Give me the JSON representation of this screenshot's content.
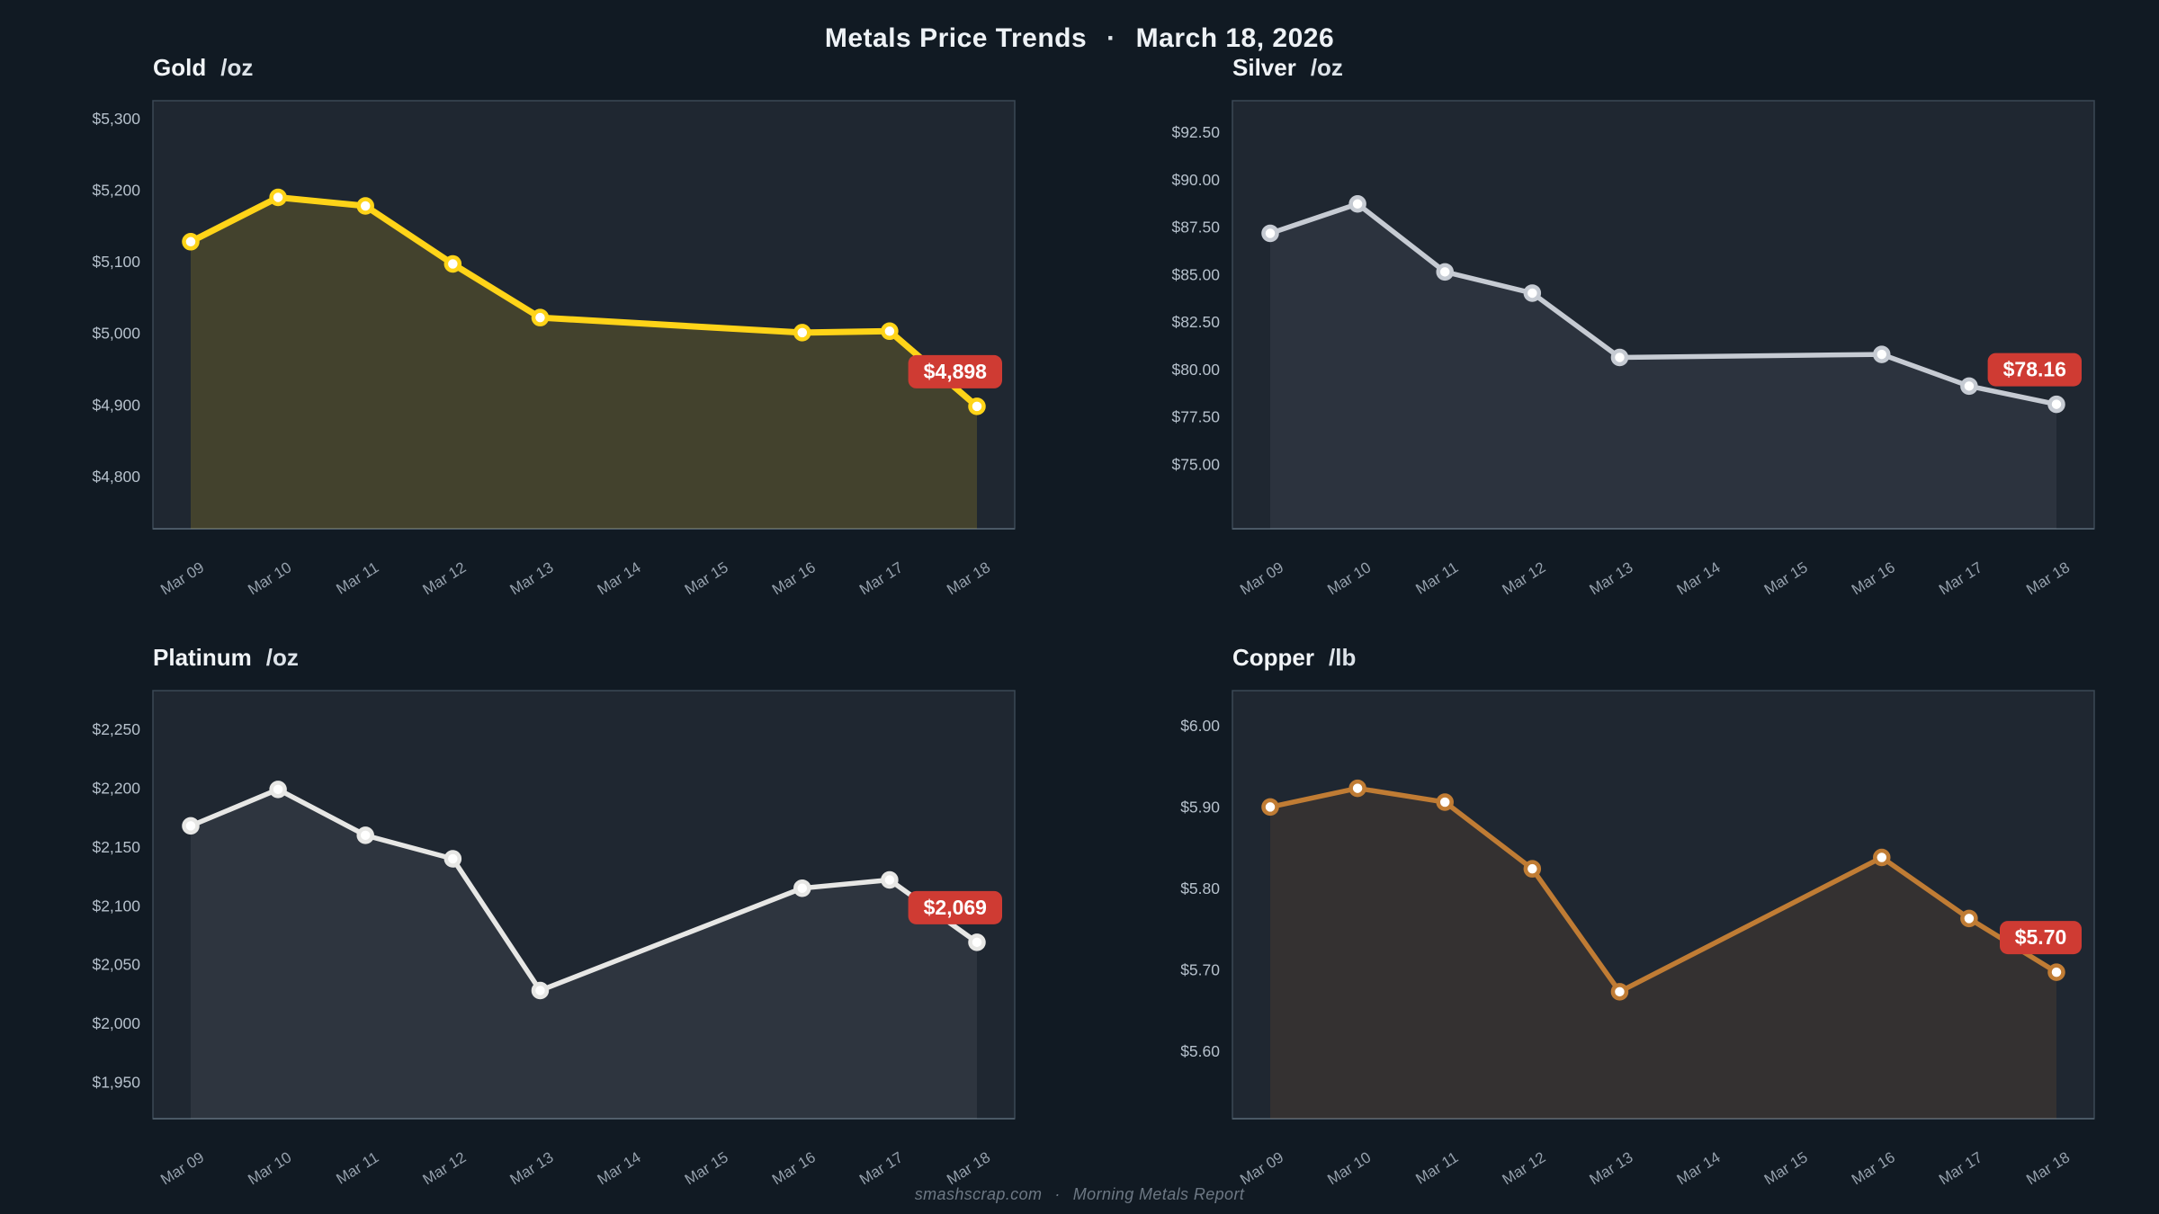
{
  "header": {
    "title": "Metals Price Trends",
    "separator": "·",
    "date": "March 18, 2026"
  },
  "footer": {
    "site": "smashscrap.com",
    "separator": "·",
    "report": "Morning Metals Report"
  },
  "colors": {
    "page_bg": "#111a23",
    "plot_bg": "#1f2731",
    "plot_border": "#3b4855",
    "axis_bottom_line": "#4a5865",
    "ytick_text": "#b6c1cc",
    "xtick_text": "#96a1ad",
    "marker_fill": "#ffffff",
    "badge_bg": "#cf3b33",
    "badge_text": "#ffffff"
  },
  "x_axis": {
    "labels": [
      "Mar 09",
      "Mar 10",
      "Mar 11",
      "Mar 12",
      "Mar 13",
      "Mar 14",
      "Mar 15",
      "Mar 16",
      "Mar 17",
      "Mar 18"
    ]
  },
  "chart_data": [
    {
      "type": "line",
      "name": "gold",
      "title": "Gold",
      "unit": "/oz",
      "color": "#ffd418",
      "fill_opacity": 0.16,
      "line_width": 7,
      "data_x_indices": [
        0,
        1,
        2,
        3,
        4,
        7,
        8,
        9
      ],
      "values": [
        5128,
        5190,
        5178,
        5097,
        5022,
        5001,
        5003,
        4898
      ],
      "ylim": [
        4727,
        5325
      ],
      "yticks": [
        {
          "label": "$5,300",
          "value": 5300
        },
        {
          "label": "$5,200",
          "value": 5200
        },
        {
          "label": "$5,100",
          "value": 5100
        },
        {
          "label": "$5,000",
          "value": 5000
        },
        {
          "label": "$4,900",
          "value": 4900
        },
        {
          "label": "$4,800",
          "value": 4800
        }
      ],
      "final_label": "$4,898"
    },
    {
      "type": "line",
      "name": "silver",
      "title": "Silver",
      "unit": "/oz",
      "color": "#c6cbd3",
      "fill_opacity": 0.08,
      "line_width": 5.5,
      "data_x_indices": [
        0,
        1,
        2,
        3,
        4,
        7,
        8,
        9
      ],
      "values": [
        87.17,
        88.72,
        85.14,
        84.02,
        80.63,
        80.79,
        79.12,
        78.16
      ],
      "ylim": [
        71.6,
        94.16
      ],
      "yticks": [
        {
          "label": "$92.50",
          "value": 92.5
        },
        {
          "label": "$90.00",
          "value": 90.0
        },
        {
          "label": "$87.50",
          "value": 87.5
        },
        {
          "label": "$85.00",
          "value": 85.0
        },
        {
          "label": "$82.50",
          "value": 82.5
        },
        {
          "label": "$80.00",
          "value": 80.0
        },
        {
          "label": "$77.50",
          "value": 77.5
        },
        {
          "label": "$75.00",
          "value": 75.0
        }
      ],
      "final_label": "$78.16"
    },
    {
      "type": "line",
      "name": "platinum",
      "title": "Platinum",
      "unit": "/oz",
      "color": "#e7e7e5",
      "fill_opacity": 0.08,
      "line_width": 5.5,
      "data_x_indices": [
        0,
        1,
        2,
        3,
        4,
        7,
        8,
        9
      ],
      "values": [
        2168,
        2199,
        2160,
        2140,
        2028,
        2115,
        2122,
        2069
      ],
      "ylim": [
        1919,
        2283
      ],
      "yticks": [
        {
          "label": "$2,250",
          "value": 2250
        },
        {
          "label": "$2,200",
          "value": 2200
        },
        {
          "label": "$2,150",
          "value": 2150
        },
        {
          "label": "$2,100",
          "value": 2100
        },
        {
          "label": "$2,050",
          "value": 2050
        },
        {
          "label": "$2,000",
          "value": 2000
        },
        {
          "label": "$1,950",
          "value": 1950
        }
      ],
      "final_label": "$2,069"
    },
    {
      "type": "line",
      "name": "copper",
      "title": "Copper",
      "unit": "/lb",
      "color": "#c07c34",
      "fill_opacity": 0.13,
      "line_width": 5.5,
      "data_x_indices": [
        0,
        1,
        2,
        3,
        4,
        7,
        8,
        9
      ],
      "values": [
        5.9,
        5.923,
        5.906,
        5.824,
        5.673,
        5.838,
        5.763,
        5.697
      ],
      "ylim": [
        5.517,
        6.043
      ],
      "yticks": [
        {
          "label": "$6.00",
          "value": 6.0
        },
        {
          "label": "$5.90",
          "value": 5.9
        },
        {
          "label": "$5.80",
          "value": 5.8
        },
        {
          "label": "$5.70",
          "value": 5.7
        },
        {
          "label": "$5.60",
          "value": 5.6
        }
      ],
      "final_label": "$5.70"
    }
  ]
}
